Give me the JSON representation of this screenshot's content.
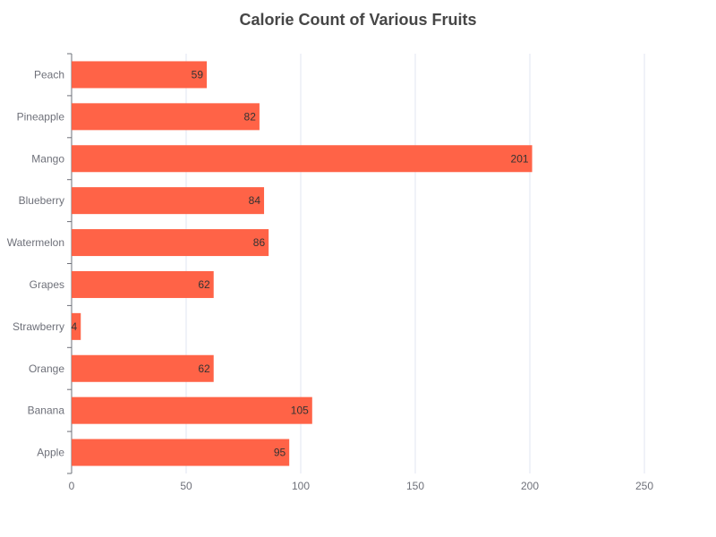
{
  "chart_data": {
    "type": "bar",
    "orientation": "horizontal",
    "title": "Calorie Count of Various Fruits",
    "xlabel": "",
    "ylabel": "",
    "categories": [
      "Apple",
      "Banana",
      "Orange",
      "Strawberry",
      "Grapes",
      "Watermelon",
      "Blueberry",
      "Mango",
      "Pineapple",
      "Peach"
    ],
    "values": [
      95,
      105,
      62,
      4,
      62,
      86,
      84,
      201,
      82,
      59
    ],
    "xlim": [
      0,
      250
    ],
    "xticks": [
      0,
      50,
      100,
      150,
      200,
      250
    ],
    "data_labels": true,
    "grid": true,
    "colors": {
      "bar": "#ff6347",
      "grid": "#e0e6f1",
      "axis": "#6e7079",
      "title": "#464646",
      "label": "#333333"
    }
  }
}
